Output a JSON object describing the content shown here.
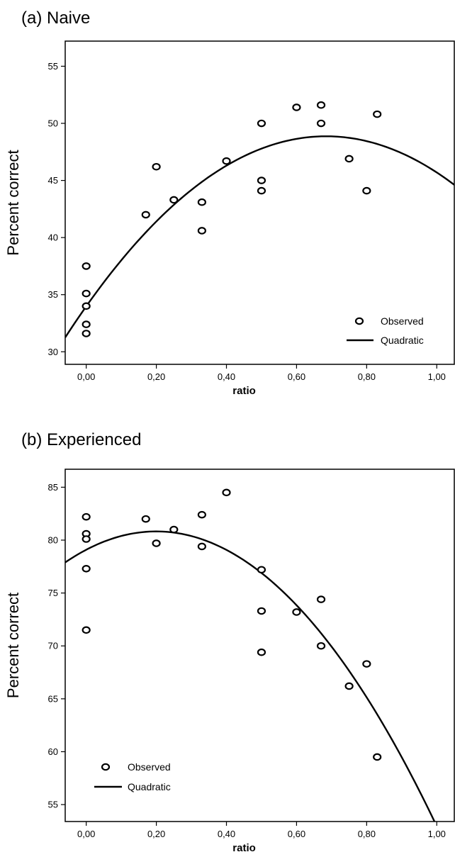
{
  "chart_data": [
    {
      "title": "(a) Naive",
      "type": "scatter",
      "xlabel": "ratio",
      "ylabel": "Percent correct",
      "xlim": [
        -0.06,
        1.05
      ],
      "ylim": [
        28.9,
        57.2
      ],
      "x_ticks": [
        0,
        0.2,
        0.4,
        0.6,
        0.8,
        1.0
      ],
      "x_tick_labels": [
        "0,00",
        "0,20",
        "0,40",
        "0,60",
        "0,80",
        "1,00"
      ],
      "y_ticks": [
        30,
        35,
        40,
        45,
        50,
        55
      ],
      "y_tick_labels": [
        "30",
        "35",
        "40",
        "45",
        "50",
        "55"
      ],
      "legend": {
        "position": "bottom-right",
        "observed": "Observed",
        "quadratic": "Quadratic"
      },
      "series": [
        {
          "name": "Observed",
          "kind": "points",
          "points": [
            [
              0.0,
              37.5
            ],
            [
              0.0,
              35.1
            ],
            [
              0.0,
              34.0
            ],
            [
              0.0,
              32.4
            ],
            [
              0.0,
              31.6
            ],
            [
              0.17,
              42.0
            ],
            [
              0.2,
              46.2
            ],
            [
              0.25,
              43.3
            ],
            [
              0.33,
              43.1
            ],
            [
              0.33,
              40.6
            ],
            [
              0.4,
              46.7
            ],
            [
              0.5,
              50.0
            ],
            [
              0.5,
              45.0
            ],
            [
              0.5,
              44.1
            ],
            [
              0.6,
              51.4
            ],
            [
              0.67,
              51.6
            ],
            [
              0.67,
              50.0
            ],
            [
              0.75,
              46.9
            ],
            [
              0.8,
              44.1
            ],
            [
              0.83,
              50.8
            ]
          ]
        },
        {
          "name": "Quadratic",
          "kind": "curve",
          "coefficients": [
            33.978,
            43.52,
            -31.8
          ]
        }
      ]
    },
    {
      "title": "(b) Experienced",
      "type": "scatter",
      "xlabel": "ratio",
      "ylabel": "Percent correct",
      "xlim": [
        -0.06,
        1.05
      ],
      "ylim": [
        53.4,
        86.7
      ],
      "x_ticks": [
        0,
        0.2,
        0.4,
        0.6,
        0.8,
        1.0
      ],
      "x_tick_labels": [
        "0,00",
        "0,20",
        "0,40",
        "0,60",
        "0,80",
        "1,00"
      ],
      "y_ticks": [
        55,
        60,
        65,
        70,
        75,
        80,
        85
      ],
      "y_tick_labels": [
        "55",
        "60",
        "65",
        "70",
        "75",
        "80",
        "85"
      ],
      "legend": {
        "position": "bottom-left",
        "observed": "Observed",
        "quadratic": "Quadratic"
      },
      "series": [
        {
          "name": "Observed",
          "kind": "points",
          "points": [
            [
              0.0,
              82.2
            ],
            [
              0.0,
              80.6
            ],
            [
              0.0,
              80.1
            ],
            [
              0.0,
              77.3
            ],
            [
              0.0,
              71.5
            ],
            [
              0.17,
              82.0
            ],
            [
              0.2,
              79.7
            ],
            [
              0.25,
              81.0
            ],
            [
              0.33,
              82.4
            ],
            [
              0.33,
              79.4
            ],
            [
              0.4,
              84.5
            ],
            [
              0.5,
              77.2
            ],
            [
              0.5,
              73.3
            ],
            [
              0.5,
              69.4
            ],
            [
              0.6,
              73.2
            ],
            [
              0.67,
              74.4
            ],
            [
              0.67,
              70.0
            ],
            [
              0.75,
              66.2
            ],
            [
              0.8,
              68.3
            ],
            [
              0.83,
              59.5
            ]
          ]
        },
        {
          "name": "Quadratic",
          "kind": "curve",
          "coefficients": [
            79.09,
            17.36,
            -43.5
          ]
        }
      ]
    }
  ]
}
